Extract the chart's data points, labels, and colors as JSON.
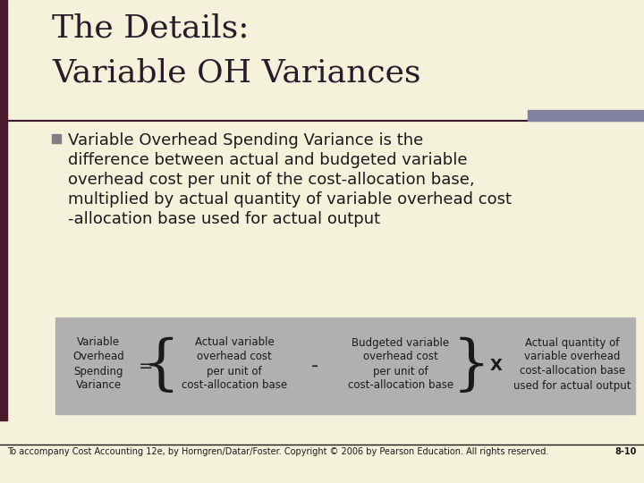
{
  "bg_color": "#f5f2dc",
  "title_line1": "The Details:",
  "title_line2": "Variable OH Variances",
  "title_color": "#2a1a2a",
  "title_fontsize": 26,
  "accent_bar_color": "#8080a0",
  "left_bar_color": "#4a1a2a",
  "bullet_color": "#808080",
  "bullet_fontsize": 13,
  "formula_bg": "#b0b0b0",
  "formula_text_color": "#1a1a1a",
  "formula_fontsize": 8.5,
  "footer_text": "To accompany Cost Accounting 12e, by Horngren/Datar/Foster. Copyright © 2006 by Pearson Education. All rights reserved.",
  "footer_right": "8-10",
  "footer_fontsize": 7
}
